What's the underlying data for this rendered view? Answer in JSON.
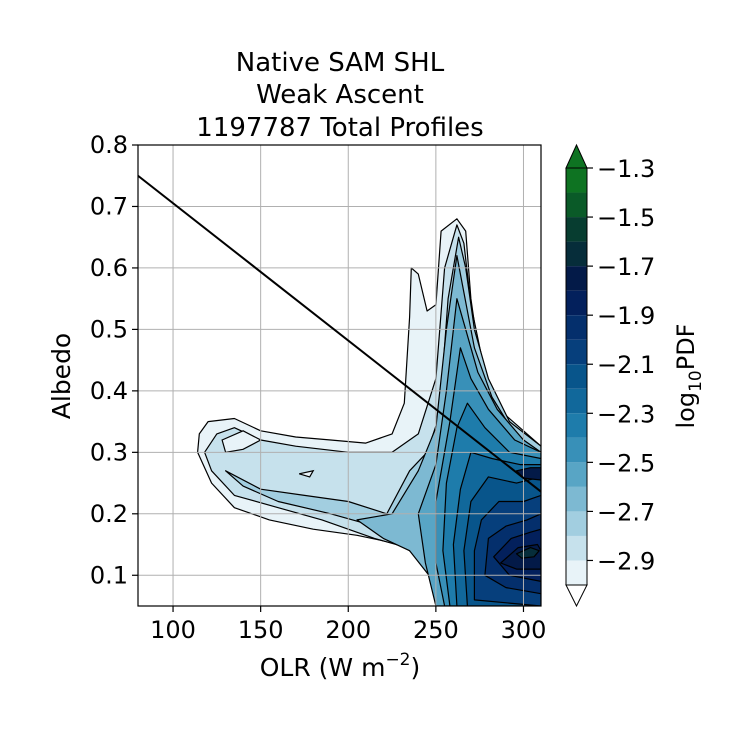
{
  "chart_data": {
    "type": "contourf",
    "title_lines": [
      "Native SAM SHL",
      "Weak Ascent",
      "1197787 Total Profiles"
    ],
    "xlabel": "OLR (W m",
    "xlabel_sup": "−2",
    "xlabel_tail": ")",
    "ylabel": "Albedo",
    "xlim": [
      80,
      310
    ],
    "ylim": [
      0.05,
      0.8
    ],
    "xticks": [
      100,
      150,
      200,
      250,
      300
    ],
    "yticks": [
      0.1,
      0.2,
      0.3,
      0.4,
      0.5,
      0.6,
      0.7,
      0.8
    ],
    "xtick_labels": [
      "100",
      "150",
      "200",
      "250",
      "300"
    ],
    "ytick_labels": [
      "0.1",
      "0.2",
      "0.3",
      "0.4",
      "0.5",
      "0.6",
      "0.7",
      "0.8"
    ],
    "grid": true,
    "reference_line": {
      "x": [
        80,
        310
      ],
      "y": [
        0.75,
        0.236
      ]
    },
    "colorbar": {
      "label_prefix": "log",
      "label_sub": "10",
      "label_suffix": "PDF",
      "levels": [
        -3.0,
        -2.9,
        -2.8,
        -2.7,
        -2.6,
        -2.5,
        -2.4,
        -2.3,
        -2.2,
        -2.1,
        -2.0,
        -1.9,
        -1.8,
        -1.7,
        -1.6,
        -1.5,
        -1.4,
        -1.3
      ],
      "colors": [
        "#e8f3f8",
        "#c6e1ec",
        "#a2cee0",
        "#7db9d2",
        "#58a5c5",
        "#3890b8",
        "#1e7cab",
        "#11689b",
        "#08558b",
        "#063f7c",
        "#042f6c",
        "#03205c",
        "#031a48",
        "#062d3a",
        "#073d30",
        "#0a5a28",
        "#0e7322"
      ],
      "extend": "both",
      "tick_values": [
        -1.3,
        -1.5,
        -1.7,
        -1.9,
        -2.1,
        -2.3,
        -2.5,
        -2.7,
        -2.9
      ],
      "tick_labels": [
        "−1.3",
        "−1.5",
        "−1.7",
        "−1.9",
        "−2.1",
        "−2.3",
        "−2.5",
        "−2.7",
        "−2.9"
      ]
    },
    "contours": [
      {
        "level_index": 0,
        "points": [
          [
            115,
            0.33
          ],
          [
            120,
            0.35
          ],
          [
            135,
            0.355
          ],
          [
            150,
            0.335
          ],
          [
            170,
            0.325
          ],
          [
            190,
            0.32
          ],
          [
            210,
            0.315
          ],
          [
            225,
            0.33
          ],
          [
            232,
            0.38
          ],
          [
            235,
            0.52
          ],
          [
            236,
            0.6
          ],
          [
            240,
            0.59
          ],
          [
            245,
            0.53
          ],
          [
            250,
            0.54
          ],
          [
            253,
            0.66
          ],
          [
            262,
            0.68
          ],
          [
            267,
            0.66
          ],
          [
            270,
            0.55
          ],
          [
            275,
            0.45
          ],
          [
            285,
            0.38
          ],
          [
            295,
            0.33
          ],
          [
            310,
            0.3
          ],
          [
            310,
            0.05
          ],
          [
            265,
            0.05
          ],
          [
            255,
            0.08
          ],
          [
            245,
            0.12
          ],
          [
            230,
            0.15
          ],
          [
            205,
            0.165
          ],
          [
            180,
            0.175
          ],
          [
            155,
            0.19
          ],
          [
            135,
            0.21
          ],
          [
            122,
            0.25
          ],
          [
            114,
            0.3
          ]
        ]
      },
      {
        "level_index": 1,
        "points": [
          [
            118,
            0.3
          ],
          [
            125,
            0.33
          ],
          [
            135,
            0.34
          ],
          [
            150,
            0.32
          ],
          [
            170,
            0.31
          ],
          [
            200,
            0.3
          ],
          [
            225,
            0.3
          ],
          [
            240,
            0.33
          ],
          [
            250,
            0.42
          ],
          [
            255,
            0.6
          ],
          [
            262,
            0.67
          ],
          [
            266,
            0.64
          ],
          [
            270,
            0.54
          ],
          [
            278,
            0.43
          ],
          [
            290,
            0.36
          ],
          [
            310,
            0.31
          ],
          [
            310,
            0.05
          ],
          [
            262,
            0.05
          ],
          [
            252,
            0.1
          ],
          [
            240,
            0.14
          ],
          [
            215,
            0.16
          ],
          [
            185,
            0.19
          ],
          [
            160,
            0.21
          ],
          [
            135,
            0.23
          ],
          [
            122,
            0.27
          ]
        ]
      },
      {
        "level_index": 2,
        "points": [
          [
            130,
            0.27
          ],
          [
            150,
            0.24
          ],
          [
            175,
            0.23
          ],
          [
            200,
            0.22
          ],
          [
            222,
            0.2
          ],
          [
            235,
            0.27
          ],
          [
            245,
            0.3
          ],
          [
            252,
            0.36
          ],
          [
            257,
            0.55
          ],
          [
            263,
            0.65
          ],
          [
            267,
            0.6
          ],
          [
            272,
            0.5
          ],
          [
            280,
            0.42
          ],
          [
            292,
            0.35
          ],
          [
            310,
            0.31
          ],
          [
            310,
            0.05
          ],
          [
            258,
            0.05
          ],
          [
            250,
            0.1
          ],
          [
            238,
            0.15
          ],
          [
            215,
            0.18
          ],
          [
            190,
            0.2
          ],
          [
            160,
            0.22
          ],
          [
            140,
            0.245
          ]
        ]
      },
      {
        "level_index": 3,
        "points": [
          [
            205,
            0.19
          ],
          [
            225,
            0.2
          ],
          [
            240,
            0.27
          ],
          [
            250,
            0.34
          ],
          [
            256,
            0.5
          ],
          [
            262,
            0.62
          ],
          [
            266,
            0.56
          ],
          [
            272,
            0.47
          ],
          [
            282,
            0.39
          ],
          [
            295,
            0.33
          ],
          [
            310,
            0.3
          ],
          [
            310,
            0.05
          ],
          [
            252,
            0.05
          ],
          [
            246,
            0.1
          ],
          [
            235,
            0.14
          ],
          [
            220,
            0.16
          ]
        ]
      },
      {
        "level_index": 4,
        "points": [
          [
            240,
            0.2
          ],
          [
            250,
            0.28
          ],
          [
            256,
            0.4
          ],
          [
            262,
            0.55
          ],
          [
            267,
            0.5
          ],
          [
            274,
            0.43
          ],
          [
            285,
            0.37
          ],
          [
            300,
            0.32
          ],
          [
            310,
            0.3
          ],
          [
            310,
            0.05
          ],
          [
            250,
            0.05
          ],
          [
            244,
            0.12
          ]
        ]
      },
      {
        "level_index": 5,
        "points": [
          [
            250,
            0.22
          ],
          [
            258,
            0.35
          ],
          [
            264,
            0.47
          ],
          [
            270,
            0.42
          ],
          [
            280,
            0.37
          ],
          [
            295,
            0.32
          ],
          [
            310,
            0.3
          ],
          [
            310,
            0.05
          ],
          [
            255,
            0.05
          ],
          [
            250,
            0.12
          ]
        ]
      },
      {
        "level_index": 6,
        "points": [
          [
            256,
            0.25
          ],
          [
            262,
            0.34
          ],
          [
            268,
            0.38
          ],
          [
            278,
            0.34
          ],
          [
            292,
            0.3
          ],
          [
            310,
            0.29
          ],
          [
            310,
            0.05
          ],
          [
            258,
            0.05
          ],
          [
            254,
            0.14
          ]
        ]
      },
      {
        "level_index": 7,
        "points": [
          [
            264,
            0.24
          ],
          [
            270,
            0.3
          ],
          [
            282,
            0.29
          ],
          [
            298,
            0.28
          ],
          [
            310,
            0.28
          ],
          [
            310,
            0.05
          ],
          [
            262,
            0.05
          ],
          [
            260,
            0.15
          ]
        ]
      },
      {
        "level_index": 8,
        "points": [
          [
            270,
            0.22
          ],
          [
            280,
            0.26
          ],
          [
            296,
            0.25
          ],
          [
            310,
            0.26
          ],
          [
            310,
            0.05
          ],
          [
            268,
            0.05
          ],
          [
            266,
            0.14
          ]
        ]
      },
      {
        "level_index": 9,
        "points": [
          [
            276,
            0.19
          ],
          [
            286,
            0.22
          ],
          [
            300,
            0.22
          ],
          [
            310,
            0.23
          ],
          [
            310,
            0.05
          ],
          [
            272,
            0.06
          ],
          [
            272,
            0.14
          ]
        ]
      },
      {
        "level_index": 10,
        "points": [
          [
            280,
            0.16
          ],
          [
            290,
            0.18
          ],
          [
            302,
            0.19
          ],
          [
            310,
            0.2
          ],
          [
            310,
            0.07
          ],
          [
            290,
            0.08
          ],
          [
            278,
            0.1
          ]
        ]
      },
      {
        "level_index": 11,
        "points": [
          [
            283,
            0.13
          ],
          [
            293,
            0.16
          ],
          [
            304,
            0.17
          ],
          [
            310,
            0.175
          ],
          [
            310,
            0.09
          ],
          [
            292,
            0.1
          ]
        ]
      },
      {
        "level_index": 12,
        "points": [
          [
            287,
            0.12
          ],
          [
            297,
            0.145
          ],
          [
            308,
            0.15
          ],
          [
            310,
            0.14
          ],
          [
            310,
            0.11
          ],
          [
            296,
            0.11
          ]
        ]
      },
      {
        "level_index": 13,
        "points": [
          [
            296,
            0.135
          ],
          [
            304,
            0.145
          ],
          [
            309,
            0.14
          ],
          [
            306,
            0.13
          ],
          [
            299,
            0.128
          ]
        ]
      },
      {
        "level_index": 12,
        "points": [
          [
            296,
            0.27
          ],
          [
            304,
            0.275
          ],
          [
            310,
            0.275
          ],
          [
            310,
            0.255
          ],
          [
            300,
            0.258
          ]
        ]
      }
    ],
    "holes": [
      {
        "points": [
          [
            128,
            0.32
          ],
          [
            140,
            0.335
          ],
          [
            150,
            0.32
          ],
          [
            140,
            0.305
          ],
          [
            130,
            0.3
          ]
        ]
      },
      {
        "points": [
          [
            172,
            0.265
          ],
          [
            180,
            0.27
          ],
          [
            178,
            0.26
          ]
        ]
      }
    ]
  }
}
